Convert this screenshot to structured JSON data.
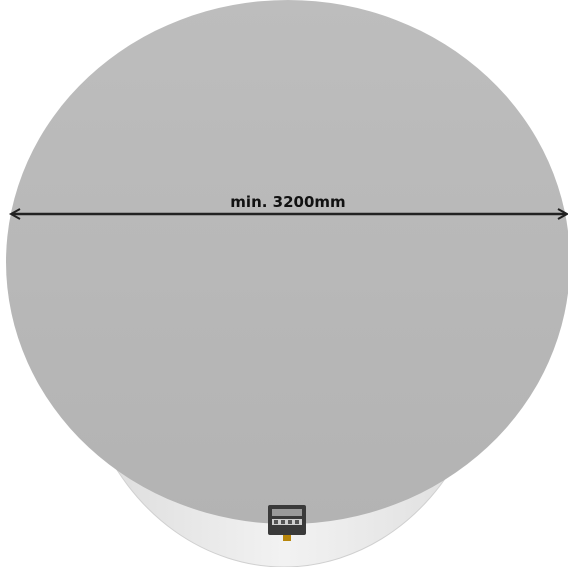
{
  "dimension": {
    "label": "min. 3200mm"
  },
  "colors": {
    "background": "#ffffff",
    "top_disc": "#b8b8b8",
    "side_shell": "#ebebeb",
    "dimension_line": "#222222",
    "device_body": "#3a3a3a",
    "device_connector": "#b8860b"
  }
}
